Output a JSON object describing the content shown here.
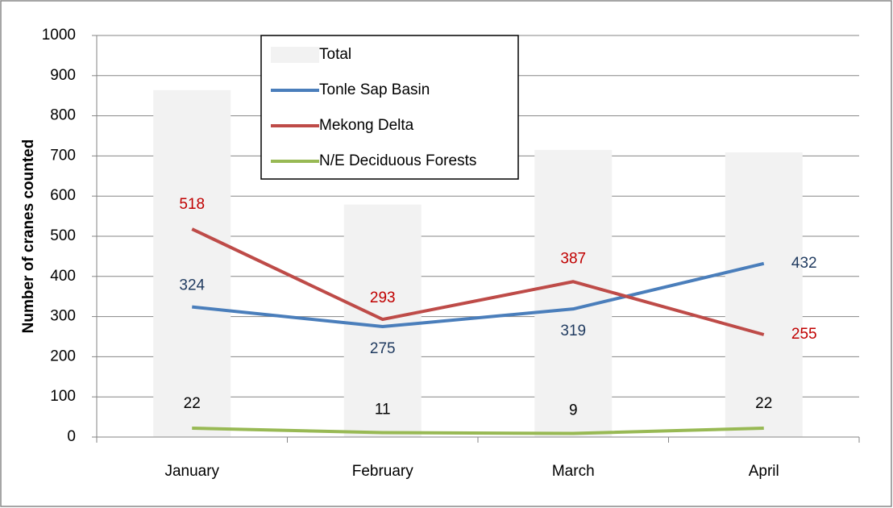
{
  "chart_data": {
    "type": "bar",
    "y_label": "Number of cranes counted",
    "categories": [
      "January",
      "February",
      "March",
      "April"
    ],
    "series": [
      {
        "name": "Total",
        "type": "bar",
        "color": "#f2f2f2",
        "values": [
          864,
          579,
          715,
          709
        ]
      },
      {
        "name": "Tonle Sap Basin",
        "type": "line",
        "color": "#4a7ebb",
        "label_color": "#1f3a5f",
        "values": [
          324,
          275,
          319,
          432
        ]
      },
      {
        "name": "Mekong Delta",
        "type": "line",
        "color": "#be4b48",
        "label_color": "#c00000",
        "values": [
          518,
          293,
          387,
          255
        ]
      },
      {
        "name": "N/E Deciduous Forests",
        "type": "line",
        "color": "#98b954",
        "label_color": "#000000",
        "values": [
          22,
          11,
          9,
          22
        ]
      }
    ],
    "ylim": [
      0,
      1000
    ],
    "yticks": [
      0,
      100,
      200,
      300,
      400,
      500,
      600,
      700,
      800,
      900,
      1000
    ],
    "grid": true,
    "legend": "top-left"
  }
}
